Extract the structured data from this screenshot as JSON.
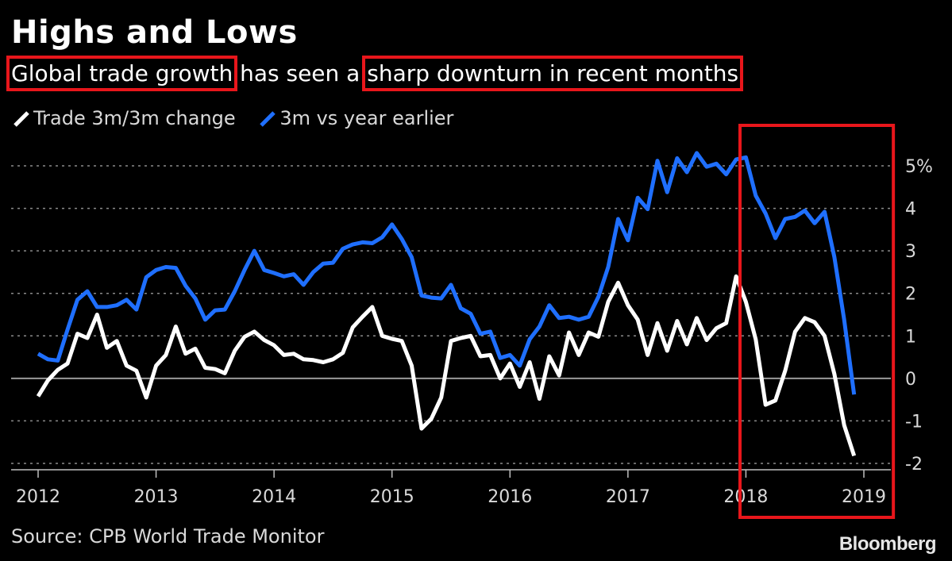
{
  "header": {
    "title": "Highs and Lows",
    "subtitle_part1": "Global trade growth",
    "subtitle_part2": " has seen a ",
    "subtitle_part3": "sharp downturn in recent months"
  },
  "legend": {
    "series1": "Trade 3m/3m change",
    "series2": "3m vs year earlier"
  },
  "footer": {
    "source": "Source: CPB World Trade Monitor",
    "logo": "Bloomberg"
  },
  "colors": {
    "background": "#000000",
    "series1": "#ffffff",
    "series2": "#1f6fff",
    "annotation": "#e8161b",
    "grid": "#8a8a8a"
  },
  "chart_data": {
    "type": "line",
    "title": "Highs and Lows",
    "subtitle": "Global trade growth has seen a sharp downturn in recent months",
    "xlabel": "",
    "ylabel": "",
    "xlim": [
      2012.0,
      2019.0
    ],
    "ylim": [
      -2,
      5
    ],
    "x_ticks": [
      2012,
      2013,
      2014,
      2015,
      2016,
      2017,
      2018,
      2019
    ],
    "x_tick_labels": [
      "2012",
      "2013",
      "2014",
      "2015",
      "2016",
      "2017",
      "2018",
      "2019"
    ],
    "y_ticks": [
      5,
      4,
      3,
      2,
      1,
      0,
      -1,
      -2
    ],
    "y_tick_labels": [
      "5%",
      "4",
      "3",
      "2",
      "1",
      "0",
      "-1",
      "-2"
    ],
    "grid": "horizontal dotted",
    "legend_position": "top-left",
    "highlight_box": {
      "x_from": 2017.95,
      "x_to": 2019.25
    },
    "x": [
      2012.0,
      2012.083,
      2012.167,
      2012.25,
      2012.333,
      2012.417,
      2012.5,
      2012.583,
      2012.667,
      2012.75,
      2012.833,
      2012.917,
      2013.0,
      2013.083,
      2013.167,
      2013.25,
      2013.333,
      2013.417,
      2013.5,
      2013.583,
      2013.667,
      2013.75,
      2013.833,
      2013.917,
      2014.0,
      2014.083,
      2014.167,
      2014.25,
      2014.333,
      2014.417,
      2014.5,
      2014.583,
      2014.667,
      2014.75,
      2014.833,
      2014.917,
      2015.0,
      2015.083,
      2015.167,
      2015.25,
      2015.333,
      2015.417,
      2015.5,
      2015.583,
      2015.667,
      2015.75,
      2015.833,
      2015.917,
      2016.0,
      2016.083,
      2016.167,
      2016.25,
      2016.333,
      2016.417,
      2016.5,
      2016.583,
      2016.667,
      2016.75,
      2016.833,
      2016.917,
      2017.0,
      2017.083,
      2017.167,
      2017.25,
      2017.333,
      2017.417,
      2017.5,
      2017.583,
      2017.667,
      2017.75,
      2017.833,
      2017.917,
      2018.0,
      2018.083,
      2018.167,
      2018.25,
      2018.333,
      2018.417,
      2018.5,
      2018.583,
      2018.667,
      2018.75,
      2018.833,
      2018.917,
      2019.0
    ],
    "series": [
      {
        "name": "Trade 3m/3m change",
        "color": "#ffffff",
        "values": [
          -0.42,
          -0.05,
          0.2,
          0.35,
          1.05,
          0.95,
          1.5,
          0.72,
          0.88,
          0.3,
          0.18,
          -0.45,
          0.3,
          0.55,
          1.22,
          0.58,
          0.7,
          0.25,
          0.22,
          0.12,
          0.65,
          0.98,
          1.1,
          0.9,
          0.78,
          0.55,
          0.58,
          0.45,
          0.43,
          0.38,
          0.45,
          0.6,
          1.2,
          1.45,
          1.68,
          1.0,
          0.93,
          0.88,
          0.3,
          -1.18,
          -0.95,
          -0.45,
          0.88,
          0.95,
          1.0,
          0.52,
          0.55,
          0.0,
          0.35,
          -0.2,
          0.38,
          -0.48,
          0.52,
          0.07,
          1.08,
          0.55,
          1.08,
          0.98,
          1.8,
          2.25,
          1.72,
          1.38,
          0.55,
          1.3,
          0.65,
          1.35,
          0.8,
          1.42,
          0.9,
          1.18,
          1.3,
          2.4,
          1.8,
          0.92,
          -0.62,
          -0.52,
          0.18,
          1.1,
          1.42,
          1.32,
          1.0,
          0.1,
          -1.1,
          -1.82,
          null
        ]
      },
      {
        "name": "3m vs year earlier",
        "color": "#1f6fff",
        "values": [
          0.58,
          0.45,
          0.42,
          1.15,
          1.85,
          2.05,
          1.68,
          1.68,
          1.72,
          1.85,
          1.62,
          2.38,
          2.55,
          2.62,
          2.6,
          2.18,
          1.88,
          1.38,
          1.6,
          1.62,
          2.05,
          2.55,
          3.0,
          2.55,
          2.48,
          2.4,
          2.45,
          2.2,
          2.5,
          2.7,
          2.72,
          3.05,
          3.15,
          3.2,
          3.18,
          3.32,
          3.62,
          3.28,
          2.85,
          1.95,
          1.9,
          1.88,
          2.2,
          1.65,
          1.52,
          1.05,
          1.1,
          0.48,
          0.55,
          0.3,
          0.92,
          1.22,
          1.72,
          1.42,
          1.45,
          1.38,
          1.45,
          1.92,
          2.62,
          3.75,
          3.25,
          4.25,
          3.98,
          5.12,
          4.38,
          5.18,
          4.85,
          5.3,
          4.98,
          5.05,
          4.8,
          5.15,
          5.2,
          4.3,
          3.88,
          3.3,
          3.75,
          3.8,
          3.95,
          3.65,
          3.92,
          2.85,
          1.38,
          -0.38,
          null
        ]
      }
    ]
  }
}
